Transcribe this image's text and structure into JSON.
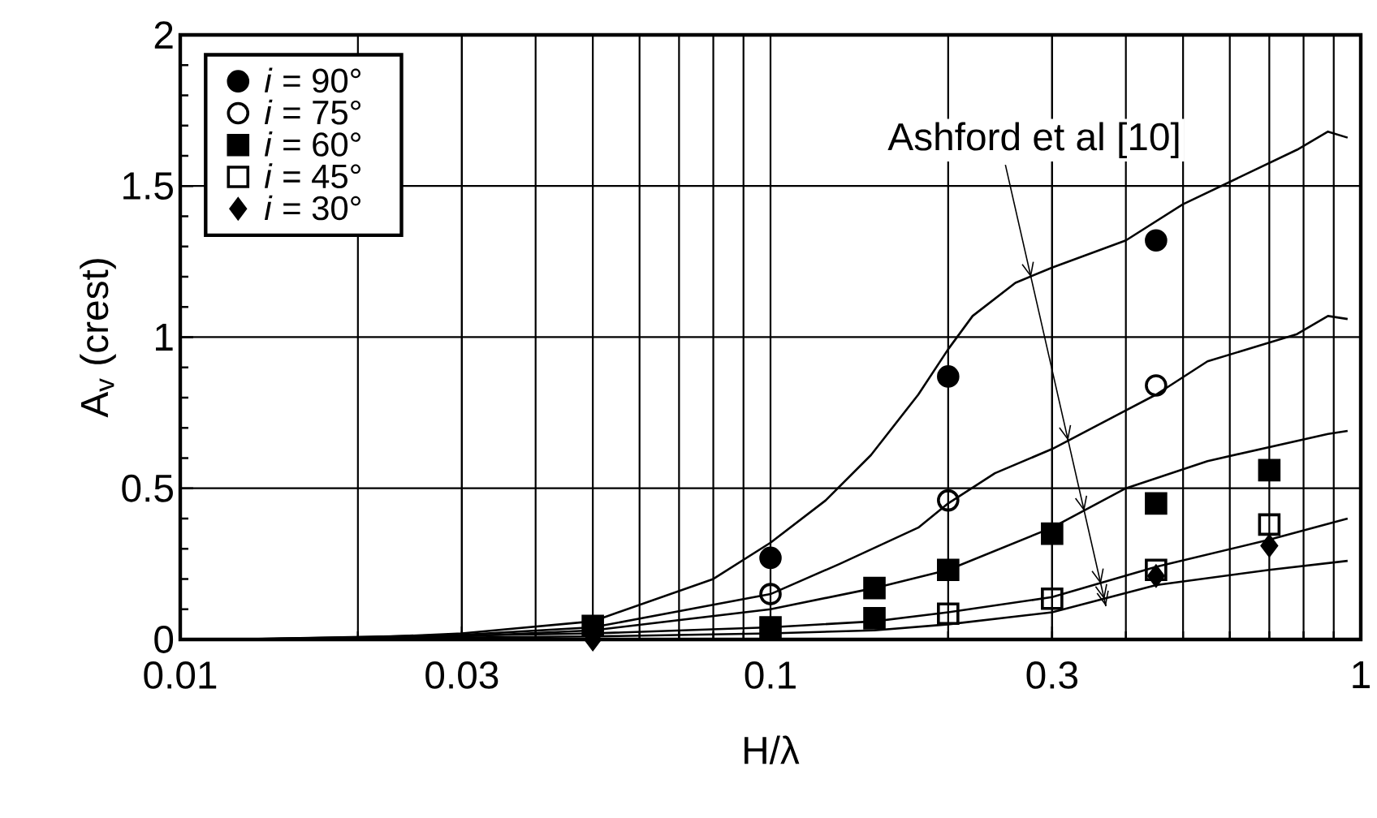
{
  "chart_data": {
    "type": "scatter",
    "xlabel": "H/λ",
    "ylabel": "A$_{v}$ (crest)",
    "log": "x",
    "xlim": [
      0.01,
      1
    ],
    "xticks": [
      0.01,
      0.03,
      0.1,
      0.3,
      1
    ],
    "ylim": [
      0,
      2
    ],
    "yticks": [
      0,
      0.5,
      1,
      1.5,
      2
    ],
    "grid": true,
    "legend": "top left",
    "annotations": [
      {
        "text": "Ashford et al [10]",
        "x": 0.37,
        "y": 0.11
      }
    ],
    "series": [
      {
        "name": "*i* = 90°",
        "marker": "circle",
        "color": "#000000",
        "x": [
          0.1,
          0.2,
          0.45
        ],
        "values": [
          0.27,
          0.87,
          1.32
        ]
      },
      {
        "name": "*i* = 75°",
        "marker": "circle-open",
        "color": "#000000",
        "x": [
          0.1,
          0.2,
          0.45
        ],
        "values": [
          0.15,
          0.46,
          0.84
        ]
      },
      {
        "name": "*i* = 60°",
        "marker": "square",
        "color": "#000000",
        "x": [
          0.05,
          0.1,
          0.15,
          0.15,
          0.2,
          0.3,
          0.45,
          0.7
        ],
        "values": [
          0.045,
          0.04,
          0.17,
          0.07,
          0.23,
          0.35,
          0.45,
          0.56
        ]
      },
      {
        "name": "*i* = 45°",
        "marker": "square-open",
        "color": "#000000",
        "x": [
          0.2,
          0.3,
          0.45,
          0.7
        ],
        "values": [
          0.085,
          0.135,
          0.23,
          0.38
        ]
      },
      {
        "name": "*i* = 30°",
        "marker": "diamond",
        "color": "#000000",
        "x": [
          0.05,
          0.45,
          0.7
        ],
        "values": [
          0.0,
          0.21,
          0.31
        ]
      },
      {
        "type": "line",
        "marker": "none",
        "color": "#000000",
        "x": [
          0.012,
          0.02,
          0.03,
          0.05,
          0.08,
          0.1,
          0.124,
          0.148,
          0.178,
          0.2,
          0.22,
          0.26,
          0.3,
          0.4,
          0.5,
          0.78,
          0.88,
          0.95
        ],
        "values": [
          0,
          0.005,
          0.02,
          0.06,
          0.2,
          0.32,
          0.46,
          0.61,
          0.81,
          0.96,
          1.07,
          1.18,
          1.23,
          1.32,
          1.44,
          1.62,
          1.68,
          1.66
        ]
      },
      {
        "type": "line",
        "marker": "none",
        "color": "#000000",
        "x": [
          0.012,
          0.03,
          0.05,
          0.1,
          0.131,
          0.178,
          0.2,
          0.24,
          0.3,
          0.45,
          0.55,
          0.78,
          0.88,
          0.95
        ],
        "values": [
          0,
          0.015,
          0.04,
          0.15,
          0.25,
          0.37,
          0.45,
          0.55,
          0.63,
          0.81,
          0.92,
          1.01,
          1.07,
          1.06
        ]
      },
      {
        "type": "line",
        "marker": "none",
        "color": "#000000",
        "x": [
          0.012,
          0.03,
          0.05,
          0.1,
          0.15,
          0.2,
          0.3,
          0.4,
          0.55,
          0.88,
          0.95
        ],
        "values": [
          0,
          0.01,
          0.03,
          0.1,
          0.17,
          0.23,
          0.37,
          0.5,
          0.59,
          0.68,
          0.69
        ]
      },
      {
        "type": "line",
        "marker": "none",
        "color": "#000000",
        "x": [
          0.012,
          0.05,
          0.1,
          0.15,
          0.2,
          0.3,
          0.45,
          0.7,
          0.95
        ],
        "values": [
          0,
          0.02,
          0.04,
          0.06,
          0.09,
          0.14,
          0.24,
          0.33,
          0.4
        ]
      },
      {
        "type": "line",
        "marker": "none",
        "color": "#000000",
        "x": [
          0.012,
          0.05,
          0.1,
          0.15,
          0.2,
          0.3,
          0.45,
          0.7,
          0.95
        ],
        "values": [
          0,
          0.01,
          0.02,
          0.03,
          0.05,
          0.09,
          0.18,
          0.23,
          0.26
        ]
      }
    ]
  }
}
